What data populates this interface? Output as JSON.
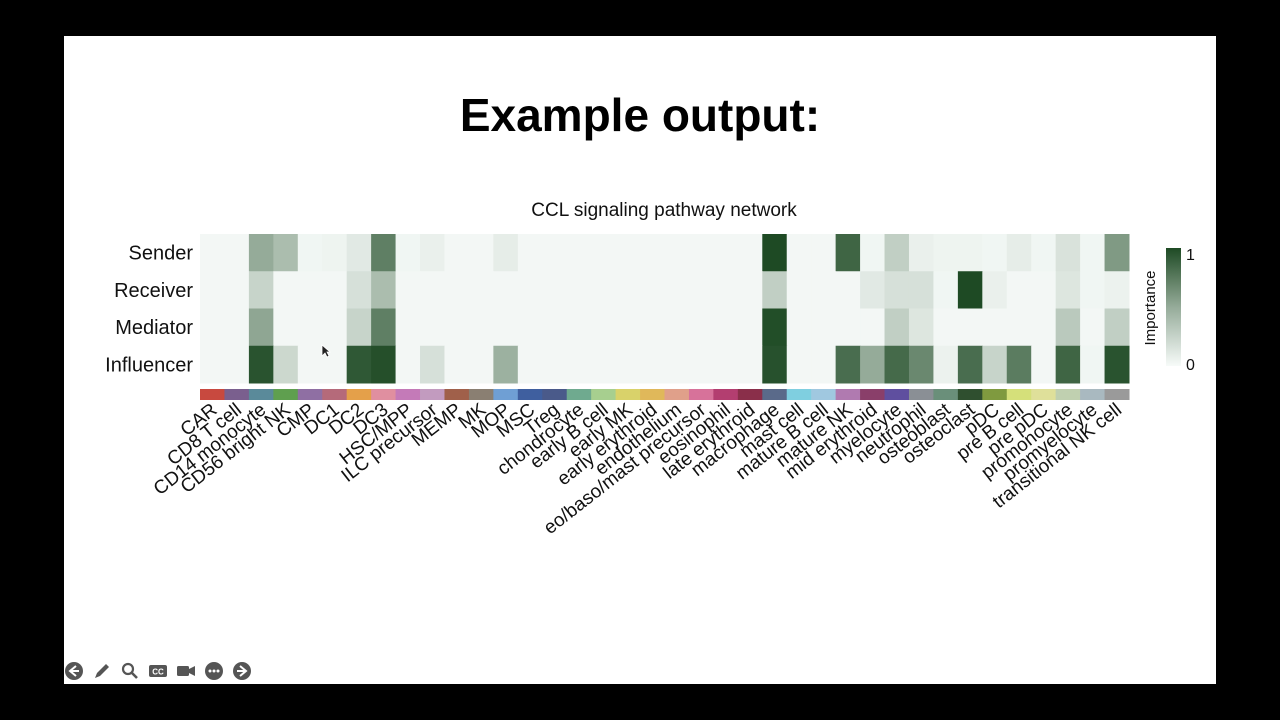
{
  "slide": {
    "title": "Example output:"
  },
  "chart_data": {
    "type": "heatmap",
    "title": "CCL signaling pathway network",
    "rows": [
      "Sender",
      "Receiver",
      "Mediator",
      "Influencer"
    ],
    "columns": [
      "CAR",
      "CD8 T cell",
      "CD14 monocyte",
      "CD56 bright NK",
      "CMP",
      "DC1",
      "DC2",
      "DC3",
      "HSC/MPP",
      "ILC precursor",
      "MEMP",
      "MK",
      "MOP",
      "MSC",
      "Treg",
      "chondrocyte",
      "early B cell",
      "early MK",
      "early erythroid",
      "endothelium",
      "eo/baso/mast precursor",
      "eosinophil",
      "late erythroid",
      "macrophage",
      "mast cell",
      "mature B cell",
      "mature NK",
      "mid erythroid",
      "myelocyte",
      "neutrophil",
      "osteoblast",
      "osteoclast",
      "pDC",
      "pre B cell",
      "pre pDC",
      "promonocyte",
      "promyelocyte",
      "transitional NK cell"
    ],
    "values": [
      [
        0.02,
        0.02,
        0.45,
        0.35,
        0.03,
        0.04,
        0.1,
        0.7,
        0.03,
        0.06,
        0.02,
        0.02,
        0.08,
        0.02,
        0.02,
        0.02,
        0.02,
        0.02,
        0.02,
        0.02,
        0.02,
        0.02,
        0.02,
        1.0,
        0.02,
        0.02,
        0.85,
        0.03,
        0.25,
        0.06,
        0.04,
        0.04,
        0.03,
        0.08,
        0.03,
        0.14,
        0.03,
        0.55
      ],
      [
        0.02,
        0.02,
        0.22,
        0.02,
        0.02,
        0.02,
        0.15,
        0.35,
        0.02,
        0.02,
        0.02,
        0.02,
        0.02,
        0.02,
        0.02,
        0.02,
        0.02,
        0.02,
        0.02,
        0.02,
        0.02,
        0.02,
        0.02,
        0.25,
        0.02,
        0.02,
        0.02,
        0.1,
        0.15,
        0.15,
        0.03,
        1.0,
        0.06,
        0.02,
        0.02,
        0.12,
        0.03,
        0.05
      ],
      [
        0.02,
        0.02,
        0.48,
        0.02,
        0.02,
        0.02,
        0.22,
        0.7,
        0.02,
        0.02,
        0.02,
        0.02,
        0.02,
        0.02,
        0.02,
        0.02,
        0.02,
        0.02,
        0.02,
        0.02,
        0.02,
        0.02,
        0.02,
        0.98,
        0.02,
        0.02,
        0.02,
        0.02,
        0.25,
        0.12,
        0.02,
        0.02,
        0.02,
        0.02,
        0.02,
        0.28,
        0.02,
        0.25
      ],
      [
        0.02,
        0.02,
        0.95,
        0.2,
        0.02,
        0.02,
        0.92,
        0.97,
        0.02,
        0.15,
        0.02,
        0.02,
        0.42,
        0.02,
        0.02,
        0.02,
        0.02,
        0.02,
        0.02,
        0.02,
        0.02,
        0.02,
        0.02,
        0.96,
        0.02,
        0.02,
        0.8,
        0.45,
        0.82,
        0.65,
        0.05,
        0.8,
        0.22,
        0.72,
        0.02,
        0.85,
        0.03,
        0.95
      ]
    ],
    "colorbar": {
      "label": "Importance",
      "min": 0,
      "max": 1,
      "ticks": [
        "1",
        "0"
      ]
    },
    "row_labels_position": "left",
    "column_labels_rotation": "diagonal",
    "category_colors": [
      "#c8493f",
      "#7a5f8e",
      "#5a8a9a",
      "#5f9f4f",
      "#8f6fa3",
      "#b56a7a",
      "#e4a04a",
      "#e08fa0",
      "#c47ab8",
      "#c29bbf",
      "#a0604a",
      "#8a7f72",
      "#6f9fd4",
      "#3f5f9f",
      "#4a5a8a",
      "#6faa8f",
      "#a7cf8f",
      "#d9d26a",
      "#e0b85a",
      "#e0a08a",
      "#d7729a",
      "#b33e70",
      "#8a2f4a",
      "#5a6a8a",
      "#7fcfe0",
      "#a0c8e0",
      "#b07ab0",
      "#8a3f6a",
      "#5f4f9f",
      "#8a8f95",
      "#6a8f7a",
      "#2f4f2f",
      "#7f9a3f",
      "#d5e07a",
      "#dfe09a",
      "#c0d0b0",
      "#a9b9c0",
      "#9a9a9a"
    ]
  },
  "toolbar": {
    "buttons": [
      "previous-slide",
      "pen",
      "zoom",
      "closed-captions",
      "camera",
      "more",
      "next-slide"
    ],
    "cc_label": "CC"
  }
}
